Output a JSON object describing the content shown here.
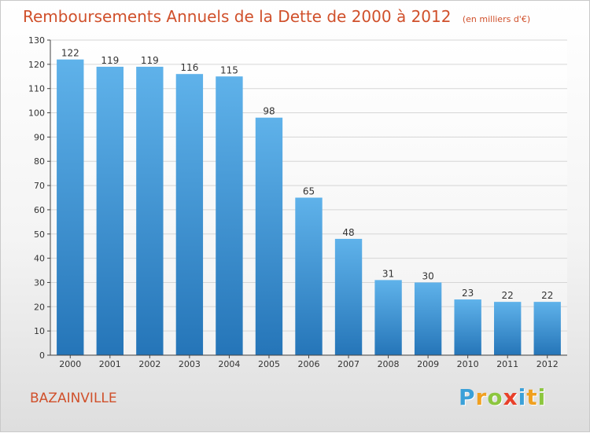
{
  "header": {
    "title": "Remboursements Annuels de la Dette de 2000 à 2012",
    "unit": "(en milliers d'€)"
  },
  "footer": {
    "commune": "BAZAINVILLE",
    "logo_letters": [
      "P",
      "r",
      "o",
      "x",
      "i",
      "t",
      "i"
    ],
    "logo_colors": [
      "#3aa0d8",
      "#f0a020",
      "#8cc63f",
      "#e8402a",
      "#3aa0d8",
      "#f0a020",
      "#8cc63f"
    ]
  },
  "colors": {
    "title": "#d0502b",
    "bar_top": "#5fb2ea",
    "bar_bottom": "#2575b8",
    "grid": "#d6d6d6"
  },
  "chart_data": {
    "type": "bar",
    "title": "Remboursements Annuels de la Dette de 2000 à 2012",
    "subtitle": "(en milliers d'€)",
    "xlabel": "",
    "ylabel": "",
    "categories": [
      "2000",
      "2001",
      "2002",
      "2003",
      "2004",
      "2005",
      "2006",
      "2007",
      "2008",
      "2009",
      "2010",
      "2011",
      "2012"
    ],
    "values": [
      122,
      119,
      119,
      116,
      115,
      98,
      65,
      48,
      31,
      30,
      23,
      22,
      22
    ],
    "ylim": [
      0,
      130
    ],
    "yticks": [
      0,
      10,
      20,
      30,
      40,
      50,
      60,
      70,
      80,
      90,
      100,
      110,
      120,
      130
    ],
    "grid": true,
    "legend": "none"
  }
}
